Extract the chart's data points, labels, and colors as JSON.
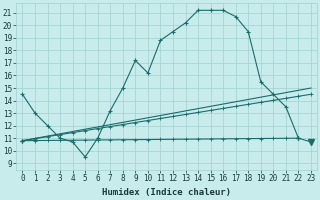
{
  "xlabel": "Humidex (Indice chaleur)",
  "bg_color": "#c8ecec",
  "grid_color": "#a0d0d0",
  "line_color": "#1a6b6b",
  "xlim": [
    -0.5,
    23.5
  ],
  "ylim": [
    8.5,
    21.8
  ],
  "yticks": [
    9,
    10,
    11,
    12,
    13,
    14,
    15,
    16,
    17,
    18,
    19,
    20,
    21
  ],
  "xticks": [
    0,
    1,
    2,
    3,
    4,
    5,
    6,
    7,
    8,
    9,
    10,
    11,
    12,
    13,
    14,
    15,
    16,
    17,
    18,
    19,
    20,
    21,
    22,
    23
  ],
  "main_curve": [
    [
      0,
      14.5
    ],
    [
      1,
      13.0
    ],
    [
      2,
      12.0
    ],
    [
      3,
      11.0
    ],
    [
      4,
      10.7
    ],
    [
      5,
      9.5
    ],
    [
      6,
      11.0
    ],
    [
      7,
      13.2
    ],
    [
      8,
      15.0
    ],
    [
      9,
      17.2
    ],
    [
      10,
      16.2
    ],
    [
      11,
      18.8
    ],
    [
      12,
      19.5
    ],
    [
      13,
      20.2
    ],
    [
      14,
      21.2
    ],
    [
      15,
      21.2
    ],
    [
      16,
      21.2
    ],
    [
      17,
      20.7
    ],
    [
      18,
      19.5
    ],
    [
      19,
      15.5
    ],
    [
      20,
      14.5
    ],
    [
      21,
      13.5
    ],
    [
      22,
      11.0
    ],
    [
      23,
      10.7
    ]
  ],
  "line_flat": [
    [
      0,
      10.8
    ],
    [
      22,
      11.0
    ]
  ],
  "line_mid": [
    [
      0,
      10.8
    ],
    [
      23,
      14.5
    ]
  ],
  "line_steep": [
    [
      0,
      10.8
    ],
    [
      23,
      15.0
    ]
  ],
  "line_width": 0.8
}
